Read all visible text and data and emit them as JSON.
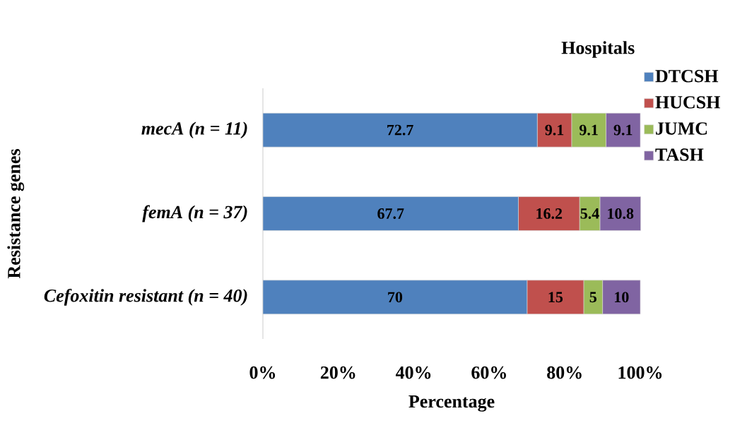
{
  "chart_data": {
    "type": "bar",
    "orientation": "horizontal",
    "stacked": true,
    "xlabel": "Percentage",
    "ylabel": "Resistance genes",
    "legend_title": "Hospitals",
    "categories": [
      "mecA (n = 11)",
      "femA (n = 37)",
      "Cefoxitin resistant  (n = 40)"
    ],
    "series": [
      {
        "name": "DTCSH",
        "color": "#4f81bd",
        "values": [
          72.7,
          67.7,
          70
        ]
      },
      {
        "name": "HUCSH",
        "color": "#c0504d",
        "values": [
          9.1,
          16.2,
          15
        ]
      },
      {
        "name": "JUMC",
        "color": "#9bbb59",
        "values": [
          9.1,
          5.4,
          5
        ]
      },
      {
        "name": "TASH",
        "color": "#8064a2",
        "values": [
          9.1,
          10.8,
          10
        ]
      }
    ],
    "xlim": [
      0,
      100
    ],
    "xticks": [
      {
        "value": 0,
        "label": "0%"
      },
      {
        "value": 20,
        "label": "20%"
      },
      {
        "value": 40,
        "label": "40%"
      },
      {
        "value": 60,
        "label": "60%"
      },
      {
        "value": 80,
        "label": "80%"
      },
      {
        "value": 100,
        "label": "100%"
      }
    ],
    "data_labels": true,
    "legend": "top right",
    "grid": false
  }
}
